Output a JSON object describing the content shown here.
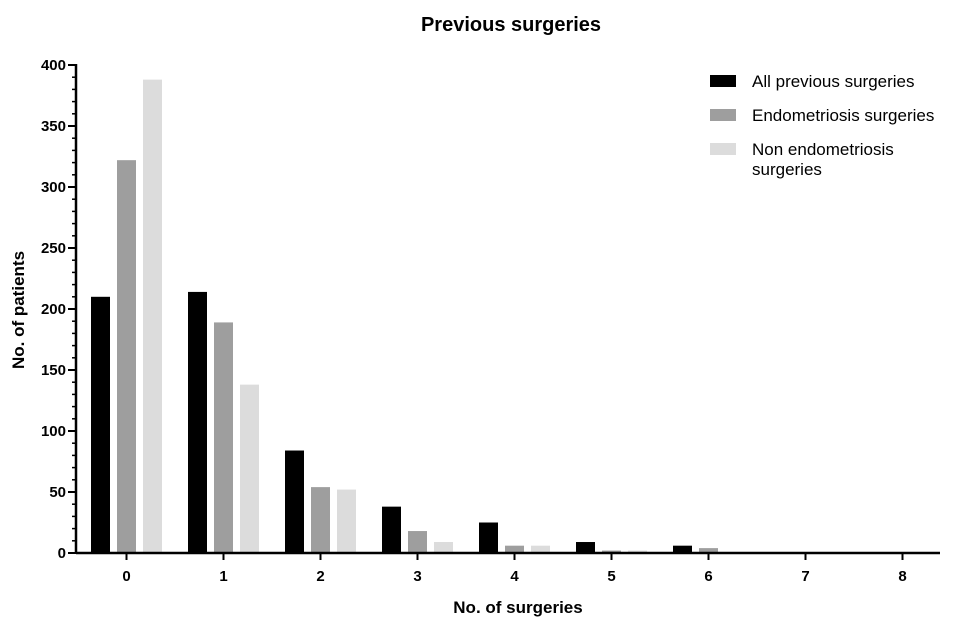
{
  "chart_data": {
    "type": "bar",
    "title": "Previous surgeries",
    "xlabel": "No. of surgeries",
    "ylabel": "No. of patients",
    "categories": [
      "0",
      "1",
      "2",
      "3",
      "4",
      "5",
      "6",
      "7",
      "8"
    ],
    "ylim": [
      0,
      400
    ],
    "yticks": [
      0,
      50,
      100,
      150,
      200,
      250,
      300,
      350,
      400
    ],
    "legend_position": "top-right",
    "grid": false,
    "series": [
      {
        "name": "All previous surgeries",
        "color": "#000000",
        "values": [
          210,
          214,
          84,
          38,
          25,
          9,
          6,
          0,
          0
        ]
      },
      {
        "name": "Endometriosis surgeries",
        "color": "#9e9e9e",
        "values": [
          322,
          189,
          54,
          18,
          6,
          2,
          4,
          0,
          0
        ]
      },
      {
        "name": "Non endometriosis surgeries",
        "color": "#dcdcdc",
        "values": [
          388,
          138,
          52,
          9,
          6,
          2,
          0,
          0,
          0
        ]
      }
    ]
  }
}
